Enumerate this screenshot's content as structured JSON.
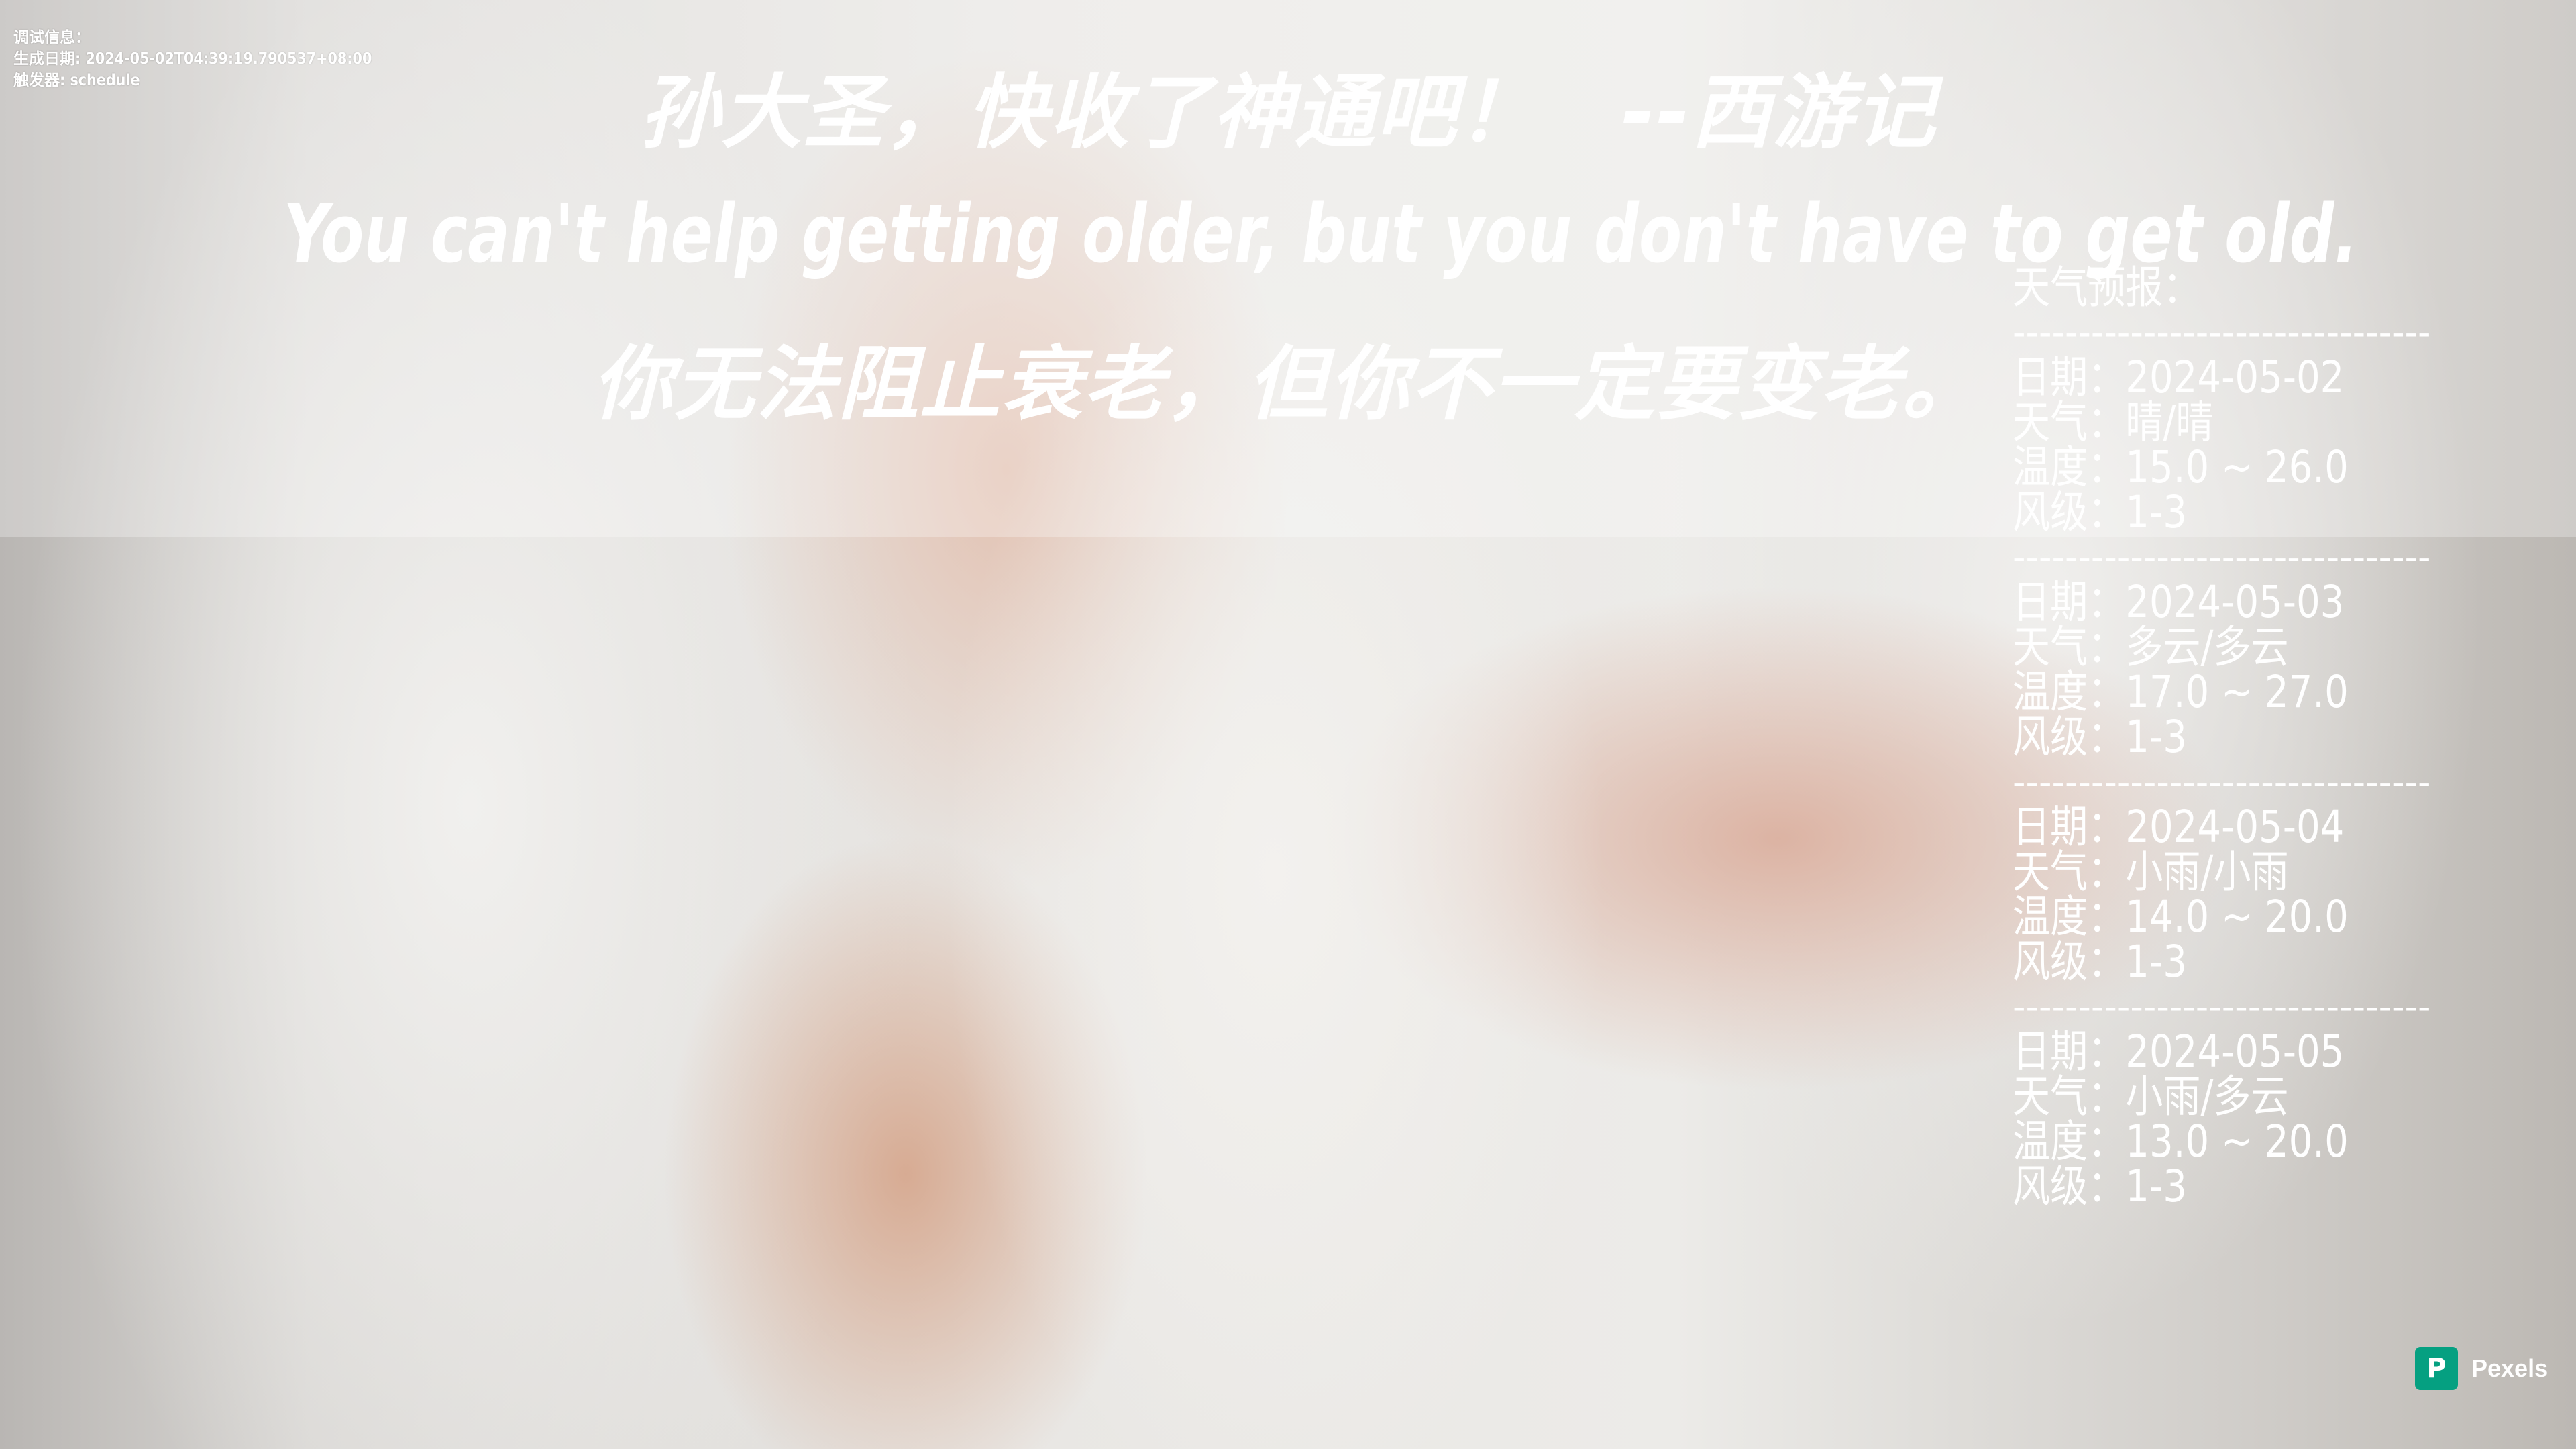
{
  "debug": {
    "label": "调试信息：",
    "generated": "生成日期: 2024-05-02T04:39:19.790537+08:00",
    "trigger": "触发器: schedule"
  },
  "quote": {
    "line1": "孙大圣，快收了神通吧！　--西游记",
    "line2": "You can't help getting older, but you don't have to get old.",
    "line3": "你无法阻止衰老，但你不一定要变老。"
  },
  "weather": {
    "title": "天气预报：",
    "separator": "--------------------------------",
    "days": [
      {
        "date": "日期：2024-05-02",
        "weather": "天气：晴/晴",
        "temp": "温度：15.0 ~ 26.0",
        "wind": "风级：1-3"
      },
      {
        "date": "日期：2024-05-03",
        "weather": "天气：多云/多云",
        "temp": "温度：17.0 ~ 27.0",
        "wind": "风级：1-3"
      },
      {
        "date": "日期：2024-05-04",
        "weather": "天气：小雨/小雨",
        "temp": "温度：14.0 ~ 20.0",
        "wind": "风级：1-3"
      },
      {
        "date": "日期：2024-05-05",
        "weather": "天气：小雨/多云",
        "temp": "温度：13.0 ~ 20.0",
        "wind": "风级：1-3"
      }
    ]
  },
  "credit": {
    "logo": "P",
    "text": "Pexels"
  }
}
